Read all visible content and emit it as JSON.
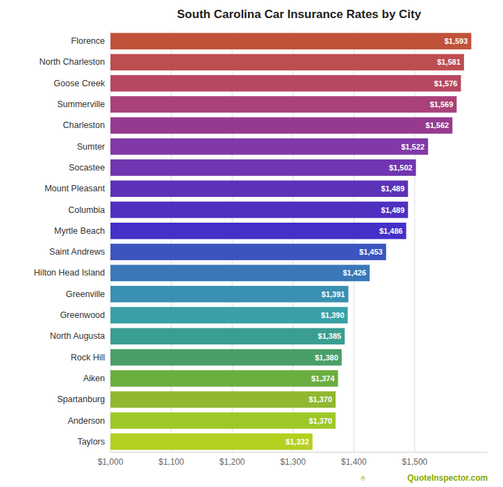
{
  "chart_data": {
    "type": "bar",
    "orientation": "horizontal",
    "title": "South Carolina Car Insurance Rates by City",
    "categories": [
      "Florence",
      "North Charleston",
      "Goose Creek",
      "Summerville",
      "Charleston",
      "Sumter",
      "Socastee",
      "Mount Pleasant",
      "Columbia",
      "Myrtle Beach",
      "Saint Andrews",
      "Hilton Head Island",
      "Greenville",
      "Greenwood",
      "North Augusta",
      "Rock Hill",
      "Aiken",
      "Spartanburg",
      "Anderson",
      "Taylors"
    ],
    "values": [
      1593,
      1581,
      1576,
      1569,
      1562,
      1522,
      1502,
      1489,
      1489,
      1486,
      1453,
      1426,
      1391,
      1390,
      1385,
      1380,
      1374,
      1370,
      1370,
      1332
    ],
    "value_labels": [
      "$1,593",
      "$1,581",
      "$1,576",
      "$1,569",
      "$1,562",
      "$1,522",
      "$1,502",
      "$1,489",
      "$1,489",
      "$1,486",
      "$1,453",
      "$1,426",
      "$1,391",
      "$1,390",
      "$1,385",
      "$1,380",
      "$1,374",
      "$1,370",
      "$1,370",
      "$1,332"
    ],
    "colors": [
      "#c0523a",
      "#be4d50",
      "#b84860",
      "#a94278",
      "#963a90",
      "#8338a8",
      "#7035b0",
      "#5c32b8",
      "#5030c0",
      "#4430c8",
      "#3a55c0",
      "#3a78b8",
      "#3a90b0",
      "#3aa0a8",
      "#3a9e90",
      "#4a9e68",
      "#6aae40",
      "#90b830",
      "#9ec828",
      "#b4d020"
    ],
    "xlim": [
      1000,
      1620
    ],
    "xticks": [
      {
        "value": 1000,
        "label": "$1,000"
      },
      {
        "value": 1100,
        "label": "$1,100"
      },
      {
        "value": 1200,
        "label": "$1,200"
      },
      {
        "value": 1300,
        "label": "$1,300"
      },
      {
        "value": 1400,
        "label": "$1,400"
      },
      {
        "value": 1500,
        "label": "$1,500"
      }
    ],
    "grid": true,
    "data_labels": true,
    "annotations": [
      "QuoteInspector.com",
      "®"
    ]
  }
}
